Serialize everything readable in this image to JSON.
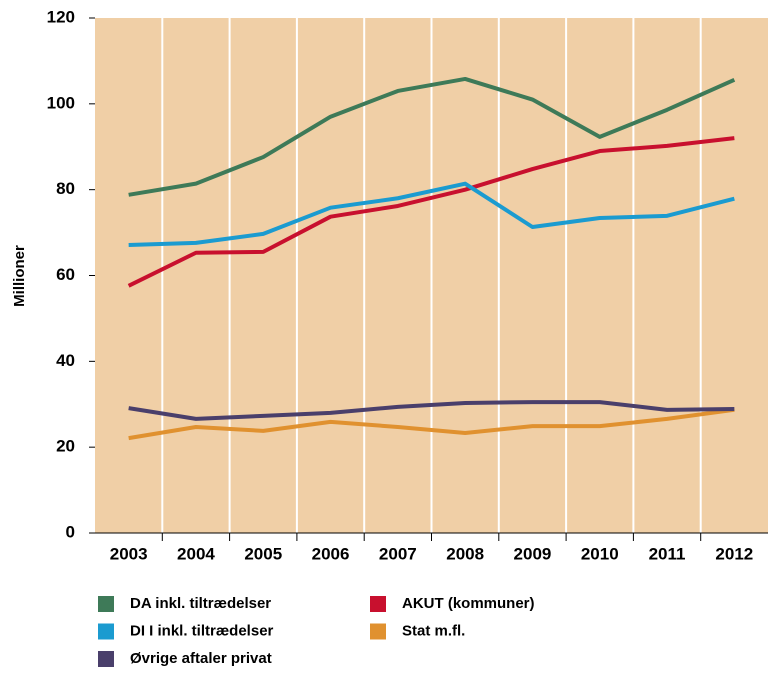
{
  "chart_data": {
    "type": "line",
    "y_label": "Millioner",
    "categories": [
      "2003",
      "2004",
      "2005",
      "2006",
      "2007",
      "2008",
      "2009",
      "2010",
      "2011",
      "2012"
    ],
    "series": [
      {
        "name": "DA inkl. tiltrædelser",
        "color": "#3e7a58",
        "values": [
          78.8,
          81.4,
          87.6,
          97,
          103,
          105.8,
          101,
          92.3,
          98.6,
          105.6
        ]
      },
      {
        "name": "AKUT (kommuner)",
        "color": "#c8102e",
        "values": [
          57.6,
          65.3,
          65.5,
          73.7,
          76.2,
          80,
          84.8,
          89,
          90.2,
          92
        ]
      },
      {
        "name": "DI I inkl. tiltrædelser",
        "color": "#1b9bd0",
        "values": [
          67.1,
          67.6,
          69.7,
          75.8,
          78,
          81.4,
          71.3,
          73.4,
          73.9,
          77.9
        ]
      },
      {
        "name": "Stat m.fl.",
        "color": "#e0912f",
        "values": [
          22.1,
          24.7,
          23.8,
          25.9,
          24.7,
          23.3,
          24.9,
          24.9,
          26.6,
          28.7
        ]
      },
      {
        "name": "Øvrige aftaler privat",
        "color": "#4a3f6b",
        "values": [
          29.1,
          26.6,
          27.3,
          28,
          29.4,
          30.3,
          30.5,
          30.5,
          28.7,
          28.9
        ]
      }
    ],
    "ylim": [
      0,
      120
    ],
    "yticks": [
      0,
      20,
      40,
      60,
      80,
      100,
      120
    ],
    "grid": "x",
    "legend": "bottom"
  }
}
